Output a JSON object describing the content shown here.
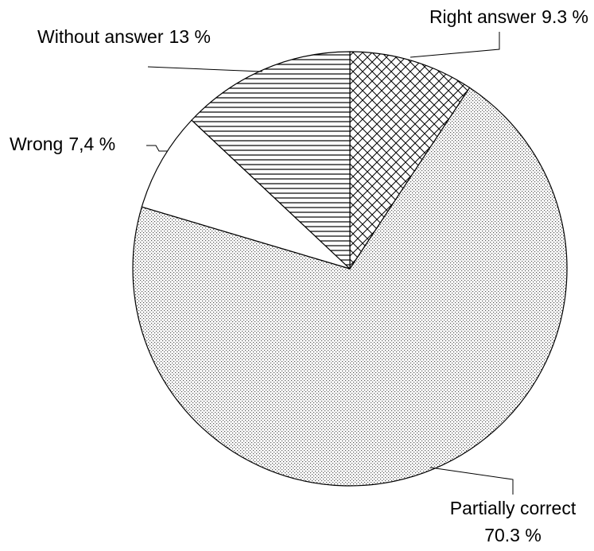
{
  "chart_data": {
    "type": "pie",
    "categories": [
      "Right answer",
      "Partially correct",
      "Wrong",
      "Without answer"
    ],
    "values": [
      9.3,
      70.3,
      7.4,
      13
    ],
    "value_labels": [
      "9.3 %",
      "70.3 %",
      "7,4 %",
      "13 %"
    ],
    "patterns": [
      "crosshatch",
      "dots",
      "none",
      "hlines"
    ],
    "color": "#000000",
    "start_angle": 0,
    "direction": "clockwise"
  }
}
